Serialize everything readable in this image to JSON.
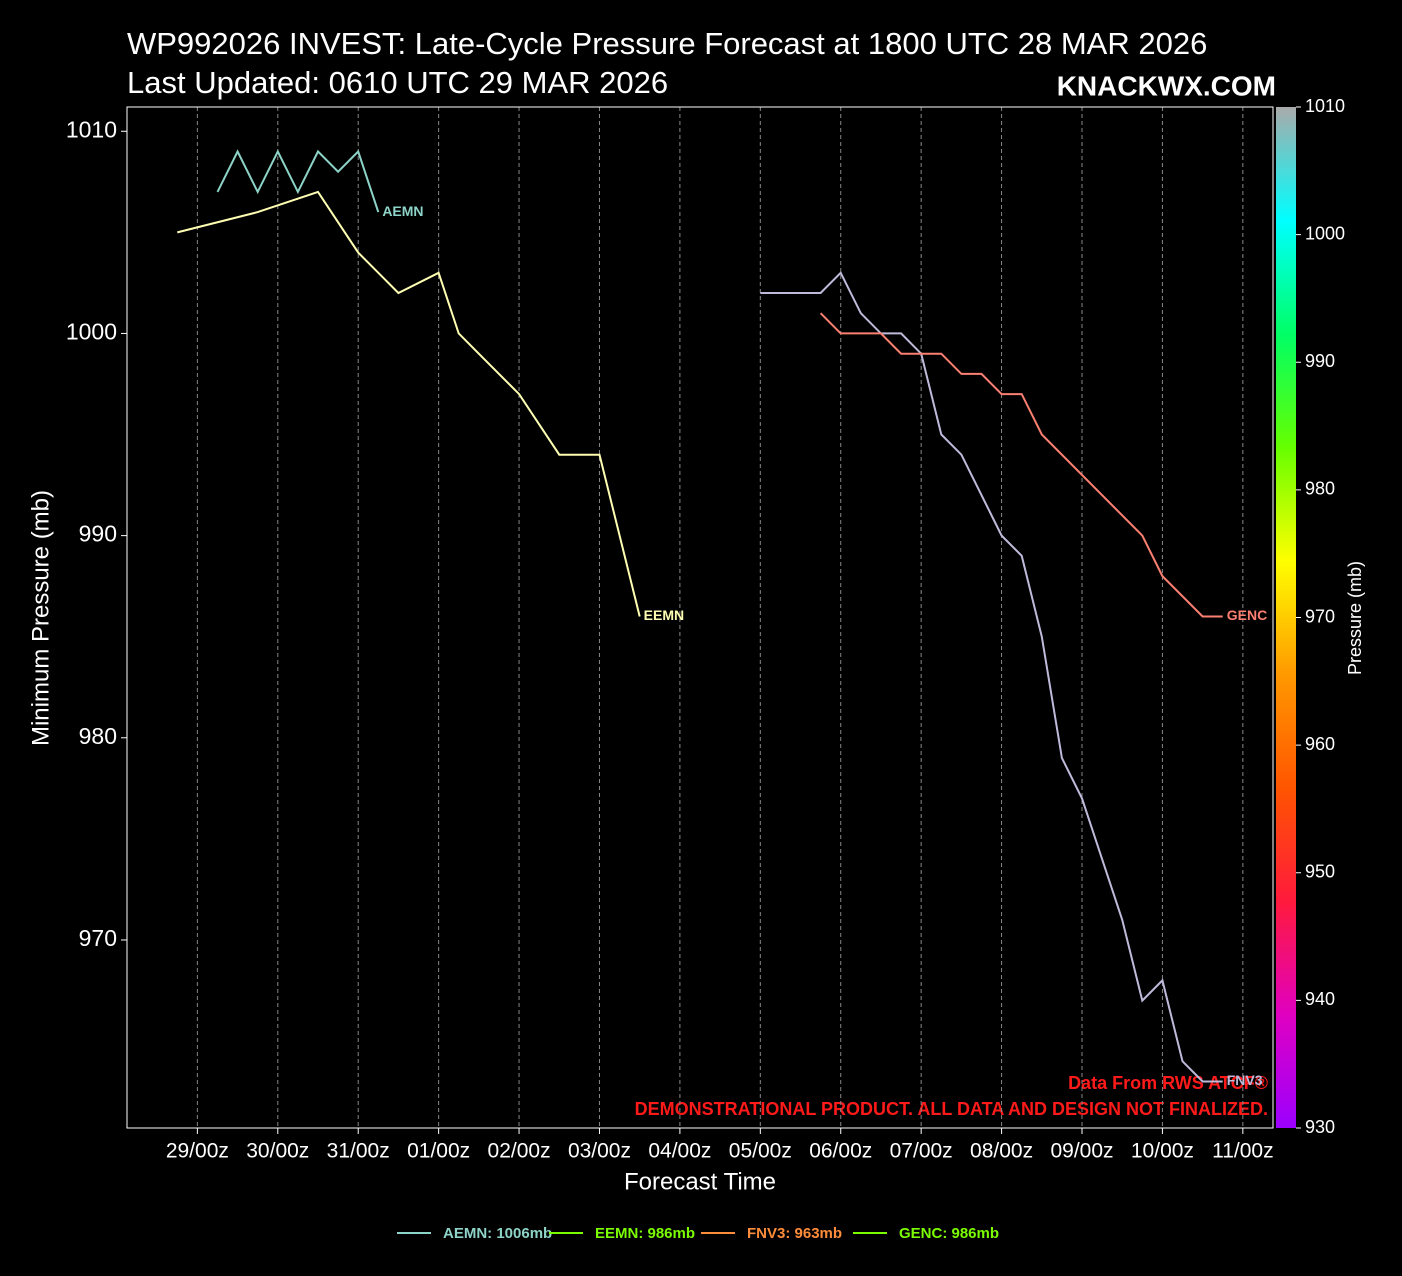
{
  "chart_data": {
    "type": "line",
    "title": "WP992026 INVEST: Late-Cycle Pressure Forecast at 1800 UTC 28 MAR 2026",
    "subtitle": "Last Updated: 0610 UTC 29 MAR 2026",
    "brand": "KNACKWX.COM",
    "x_label": "Forecast Time",
    "y_label": "Minimum Pressure (mb)",
    "annotations": [
      "Data From RWS ATCF®",
      "DEMONSTRATIONAL PRODUCT. ALL DATA AND DESIGN NOT FINALIZED."
    ],
    "xlim": [
      -15,
      327
    ],
    "xticks": [
      {
        "value": 6,
        "label": "29/00z"
      },
      {
        "value": 30,
        "label": "30/00z"
      },
      {
        "value": 54,
        "label": "31/00z"
      },
      {
        "value": 78,
        "label": "01/00z"
      },
      {
        "value": 102,
        "label": "02/00z"
      },
      {
        "value": 126,
        "label": "03/00z"
      },
      {
        "value": 150,
        "label": "04/00z"
      },
      {
        "value": 174,
        "label": "05/00z"
      },
      {
        "value": 198,
        "label": "06/00z"
      },
      {
        "value": 222,
        "label": "07/00z"
      },
      {
        "value": 246,
        "label": "08/00z"
      },
      {
        "value": 270,
        "label": "09/00z"
      },
      {
        "value": 294,
        "label": "10/00z"
      },
      {
        "value": 318,
        "label": "11/00z"
      }
    ],
    "ylim": [
      960.7,
      1011.2
    ],
    "yticks": [
      970,
      980,
      990,
      1000,
      1010
    ],
    "grid": true,
    "series": [
      {
        "name": "AEMN",
        "color": "#8dd3c7",
        "legend_label": "AEMN: 1006mb",
        "legend_color": "#8dd3c7",
        "x": [
          12,
          18,
          24,
          30,
          36,
          42,
          48,
          54,
          60
        ],
        "values": [
          1007,
          1009,
          1007,
          1009,
          1007,
          1009,
          1008,
          1009,
          1006
        ]
      },
      {
        "name": "EEMN",
        "color": "#ffffb3",
        "legend_label": "EEMN: 986mb",
        "legend_color": "#7cfc00",
        "x": [
          0,
          24,
          42,
          54,
          66,
          78,
          84,
          90,
          102,
          114,
          126,
          138
        ],
        "values": [
          1005,
          1006,
          1007,
          1004,
          1002,
          1003,
          1000,
          999,
          997,
          994,
          994,
          986
        ]
      },
      {
        "name": "FNV3",
        "color": "#bebada",
        "legend_label": "FNV3: 963mb",
        "legend_color": "#ff8c3a",
        "x": [
          174,
          192,
          198,
          204,
          210,
          216,
          222,
          228,
          234,
          246,
          252,
          258,
          264,
          270,
          282,
          288,
          294,
          300,
          306,
          312
        ],
        "values": [
          1002,
          1002,
          1003,
          1001,
          1000,
          1000,
          999,
          995,
          994,
          990,
          989,
          985,
          979,
          977,
          971,
          967,
          968,
          964,
          963,
          963
        ]
      },
      {
        "name": "GENC",
        "color": "#fb8072",
        "legend_label": "GENC: 986mb",
        "legend_color": "#7cfc00",
        "x": [
          192,
          198,
          210,
          216,
          228,
          234,
          240,
          246,
          252,
          258,
          288,
          294,
          306,
          312
        ],
        "values": [
          1001,
          1000,
          1000,
          999,
          999,
          998,
          998,
          997,
          997,
          995,
          990,
          988,
          986,
          986
        ]
      }
    ],
    "colorbar": {
      "label": "Pressure (mb)",
      "lim": [
        930,
        1010
      ],
      "ticks": [
        930,
        940,
        950,
        960,
        970,
        980,
        990,
        1000,
        1010
      ],
      "colors": [
        "#9b00ff",
        "#e000c0",
        "#ff1a3c",
        "#ff5500",
        "#ff9900",
        "#ffff00",
        "#66ff00",
        "#00ff66",
        "#00ffff",
        "#aaaaaa"
      ]
    }
  }
}
